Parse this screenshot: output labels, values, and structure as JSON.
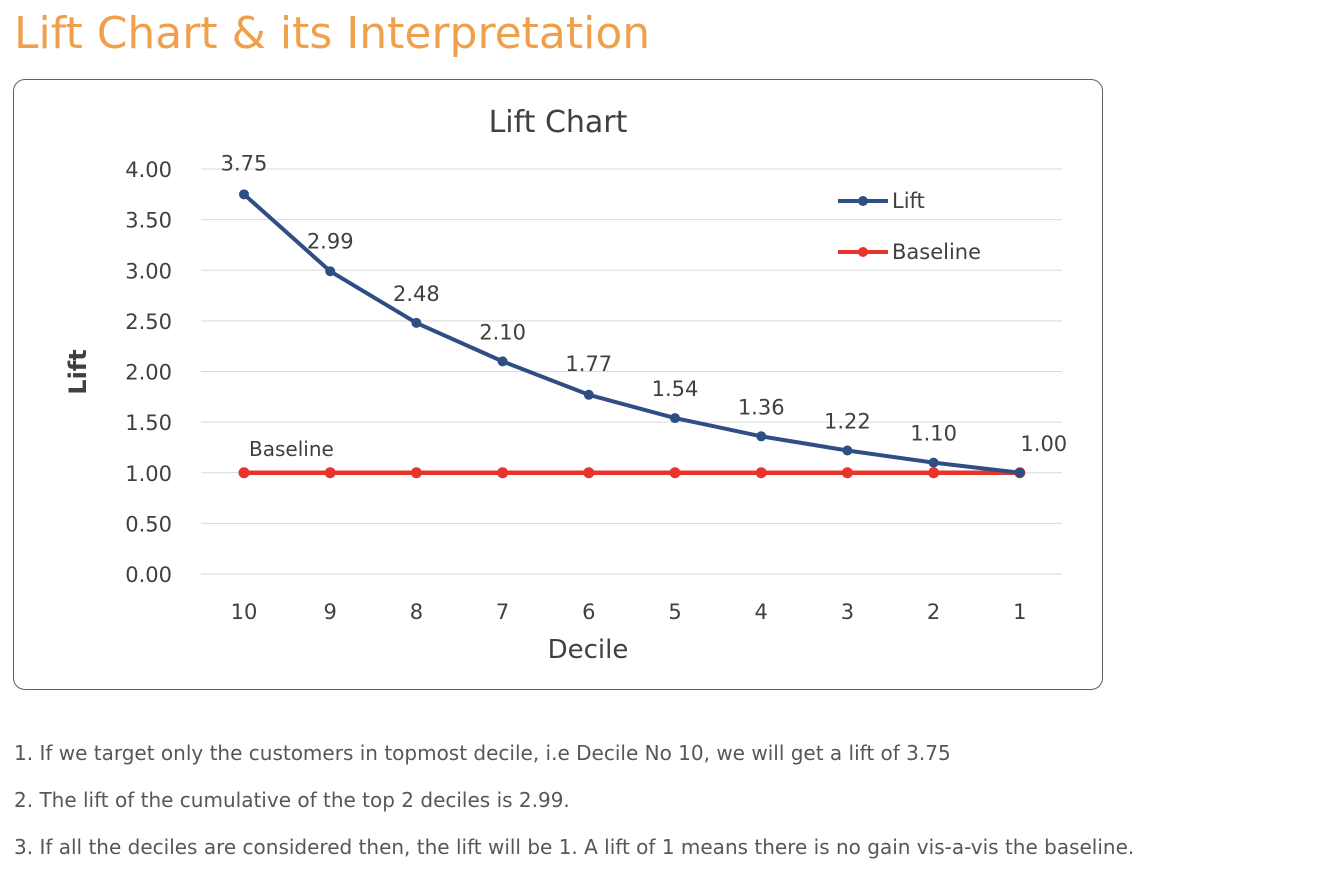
{
  "page": {
    "title": "Lift Chart & its Interpretation",
    "notes": [
      "1. If we target only the customers in topmost decile, i.e Decile No 10, we will get a lift of 3.75",
      "2. The lift of the cumulative of the top 2 deciles is 2.99.",
      "3. If all the deciles are considered then, the lift will be 1. A lift of 1 means there is no gain vis-a-vis the baseline."
    ]
  },
  "colors": {
    "title": "#f0a04b",
    "lift": "#2e4e84",
    "baseline": "#e8352b",
    "grid": "#d9d9d9"
  },
  "chart_data": {
    "type": "line",
    "title": "Lift Chart",
    "xlabel": "Decile",
    "ylabel": "Lift",
    "categories": [
      "10",
      "9",
      "8",
      "7",
      "6",
      "5",
      "4",
      "3",
      "2",
      "1"
    ],
    "ylim": [
      0,
      4
    ],
    "yticks": [
      "0.00",
      "0.50",
      "1.00",
      "1.50",
      "2.00",
      "2.50",
      "3.00",
      "3.50",
      "4.00"
    ],
    "grid": true,
    "legend_position": "top-right",
    "series": [
      {
        "name": "Lift",
        "values": [
          3.75,
          2.99,
          2.48,
          2.1,
          1.77,
          1.54,
          1.36,
          1.22,
          1.1,
          1.0
        ],
        "data_labels": [
          "3.75",
          "2.99",
          "2.48",
          "2.10",
          "1.77",
          "1.54",
          "1.36",
          "1.22",
          "1.10",
          "1.00"
        ]
      },
      {
        "name": "Baseline",
        "values": [
          1,
          1,
          1,
          1,
          1,
          1,
          1,
          1,
          1,
          1
        ]
      }
    ],
    "annotations": [
      "Baseline"
    ]
  }
}
